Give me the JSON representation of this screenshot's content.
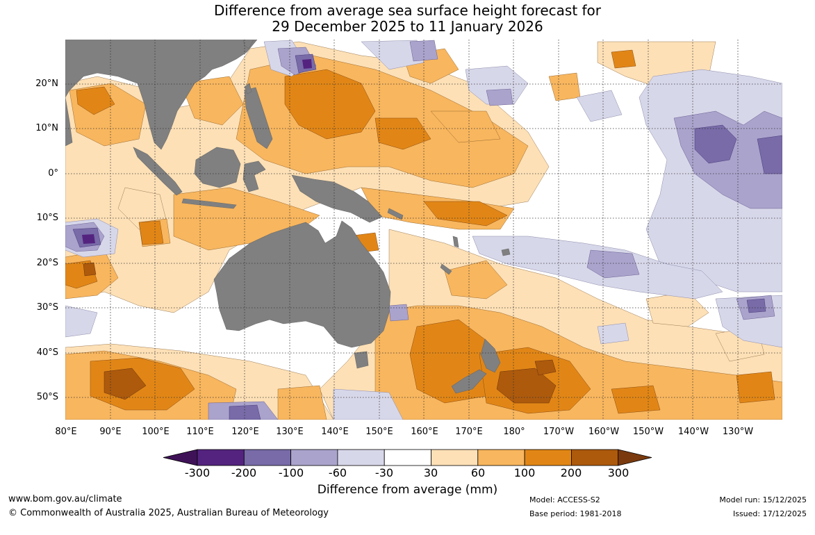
{
  "title": {
    "line1": "Difference from average sea surface height forecast for",
    "line2": "29 December 2025 to 11 January 2026"
  },
  "map": {
    "lat_labels": [
      "20°N",
      "10°N",
      "0°",
      "10°S",
      "20°S",
      "30°S",
      "40°S",
      "50°S"
    ],
    "lon_labels": [
      "80°E",
      "90°E",
      "100°E",
      "110°E",
      "120°E",
      "130°E",
      "140°E",
      "150°E",
      "160°E",
      "170°E",
      "180°",
      "170°W",
      "160°W",
      "150°W",
      "140°W",
      "130°W"
    ],
    "colors": {
      "land": "#808080",
      "ocean_neutral": "#ffffff",
      "grid": "#333333"
    }
  },
  "legend": {
    "tick_labels": [
      "-300",
      "-200",
      "-100",
      "-60",
      "-30",
      "30",
      "60",
      "100",
      "200",
      "300"
    ],
    "colors": [
      "#3f1258",
      "#54237f",
      "#786ba8",
      "#aaa3cc",
      "#d7d7ea",
      "#ffffff",
      "#fde0b6",
      "#f8b65e",
      "#e18616",
      "#ad5a0d",
      "#7a3a0e"
    ],
    "title": "Difference from average (mm)"
  },
  "footer": {
    "website": "www.bom.gov.au/climate",
    "copyright": "© Commonwealth of Australia 2025, Australian Bureau of Meteorology",
    "model": "Model: ACCESS-S2",
    "base_period": "Base period: 1981-2018",
    "model_run": "Model run: 15/12/2025",
    "issued": "Issued: 17/12/2025"
  }
}
